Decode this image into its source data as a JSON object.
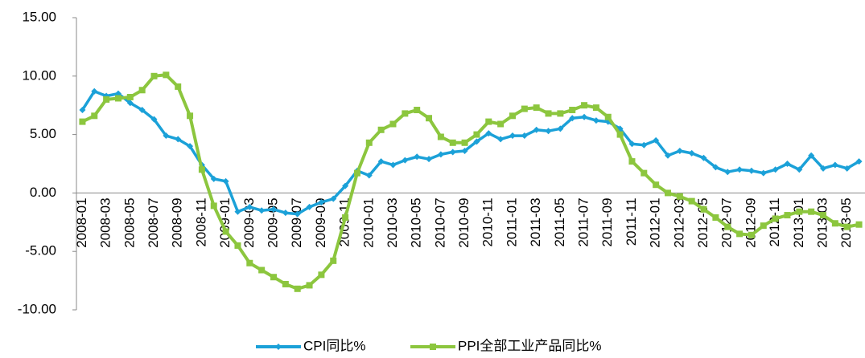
{
  "chart_data": {
    "type": "line",
    "categories": [
      "2008-01",
      null,
      "2008-03",
      null,
      "2008-05",
      null,
      "2008-07",
      null,
      "2008-09",
      null,
      "2008-11",
      null,
      "2009-01",
      null,
      "2009-03",
      null,
      "2009-05",
      null,
      "2009-07",
      null,
      "2009-09",
      null,
      "2009-11",
      null,
      "2010-01",
      null,
      "2010-03",
      null,
      "2010-05",
      null,
      "2010-07",
      null,
      "2010-09",
      null,
      "2010-11",
      null,
      "2011-01",
      null,
      "2011-03",
      null,
      "2011-05",
      null,
      "2011-07",
      null,
      "2011-09",
      null,
      "2011-11",
      null,
      "2012-01",
      null,
      "2012-03",
      null,
      "2012-05",
      null,
      "2012-07",
      null,
      "2012-09",
      null,
      "2012-11",
      null,
      "2013-01",
      null,
      "2013-03",
      null,
      "2013-05",
      null
    ],
    "series": [
      {
        "name": "CPI同比%",
        "color": "#1ba1d8",
        "marker": "diamond",
        "values": [
          7.1,
          8.7,
          8.3,
          8.5,
          7.7,
          7.1,
          6.3,
          4.9,
          4.6,
          4.0,
          2.4,
          1.2,
          1.0,
          -1.6,
          -1.2,
          -1.5,
          -1.4,
          -1.7,
          -1.8,
          -1.2,
          -0.8,
          -0.5,
          0.6,
          1.9,
          1.5,
          2.7,
          2.4,
          2.8,
          3.1,
          2.9,
          3.3,
          3.5,
          3.6,
          4.4,
          5.1,
          4.6,
          4.9,
          4.9,
          5.4,
          5.3,
          5.5,
          6.4,
          6.5,
          6.2,
          6.1,
          5.5,
          4.2,
          4.1,
          4.5,
          3.2,
          3.6,
          3.4,
          3.0,
          2.2,
          1.8,
          2.0,
          1.9,
          1.7,
          2.0,
          2.5,
          2.0,
          3.2,
          2.1,
          2.4,
          2.1,
          2.7
        ]
      },
      {
        "name": "PPI全部工业产品同比%",
        "color": "#8cc63e",
        "marker": "square",
        "values": [
          6.1,
          6.6,
          8.0,
          8.1,
          8.2,
          8.8,
          10.0,
          10.1,
          9.1,
          6.6,
          2.0,
          -1.1,
          -3.3,
          -4.5,
          -6.0,
          -6.6,
          -7.2,
          -7.8,
          -8.2,
          -7.9,
          -7.0,
          -5.8,
          -2.1,
          1.7,
          4.3,
          5.4,
          5.9,
          6.8,
          7.1,
          6.4,
          4.8,
          4.3,
          4.3,
          5.0,
          6.1,
          5.9,
          6.6,
          7.2,
          7.3,
          6.8,
          6.8,
          7.1,
          7.5,
          7.3,
          6.5,
          5.0,
          2.7,
          1.7,
          0.7,
          0.0,
          -0.3,
          -0.7,
          -1.4,
          -2.1,
          -2.9,
          -3.5,
          -3.6,
          -2.8,
          -2.2,
          -1.9,
          -1.6,
          -1.6,
          -1.9,
          -2.6,
          -2.9,
          -2.7
        ]
      }
    ],
    "ylim": [
      -10,
      15
    ],
    "yticks": [
      {
        "value": -10,
        "label": "-10.00"
      },
      {
        "value": -5,
        "label": "-5.00"
      },
      {
        "value": 0,
        "label": "0.00"
      },
      {
        "value": 5,
        "label": "5.00"
      },
      {
        "value": 10,
        "label": "10.00"
      },
      {
        "value": 15,
        "label": "15.00"
      }
    ],
    "grid": false,
    "legend": "bottom"
  }
}
